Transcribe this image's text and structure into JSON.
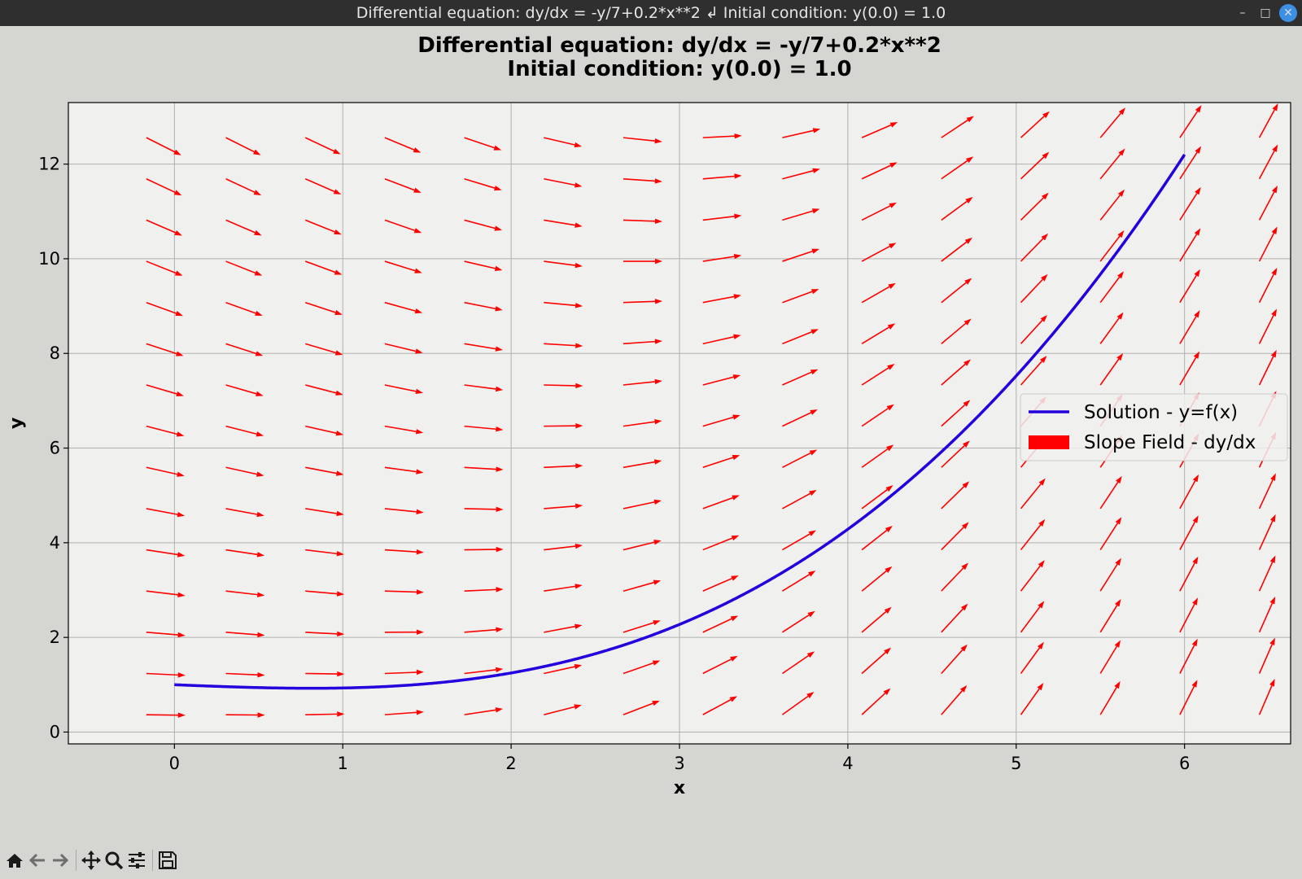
{
  "window": {
    "title": "Differential equation: dy/dx = -y/7+0.2*x**2 ↲ Initial condition: y(0.0) = 1.0",
    "minimize_glyph": "–",
    "maximize_glyph": "□",
    "close_glyph": "✕"
  },
  "toolbar": {
    "icons": [
      "home-icon",
      "back-arrow-icon",
      "forward-arrow-icon",
      "pan-icon",
      "zoom-icon",
      "configure-subplots-icon",
      "save-icon"
    ]
  },
  "chart_data": {
    "type": "line",
    "title_lines": [
      "Differential equation: dy/dx = -y/7+0.2*x**2",
      "Initial condition: y(0.0) = 1.0"
    ],
    "xlabel": "x",
    "ylabel": "y",
    "xlim": [
      -0.63,
      6.63
    ],
    "ylim": [
      -0.25,
      13.3
    ],
    "xticks": [
      0,
      1,
      2,
      3,
      4,
      5,
      6
    ],
    "yticks": [
      0,
      2,
      4,
      6,
      8,
      10,
      12
    ],
    "grid": true,
    "legend_placement": "center-right",
    "legend": [
      {
        "label": "Solution - y=f(x)",
        "color": "#2200dd",
        "kind": "line"
      },
      {
        "label": "Slope Field - dy/dx",
        "color": "#ff0000",
        "kind": "patch"
      }
    ],
    "equation": "dy/dx = -y/7+0.2*x**2",
    "initial_condition": {
      "x0": 0.0,
      "y0": 1.0
    },
    "solution_x_range": [
      0,
      6
    ],
    "solution_points": [
      [
        0,
        1.0
      ],
      [
        0.5,
        0.94
      ],
      [
        1,
        0.94
      ],
      [
        1.5,
        1.05
      ],
      [
        2,
        1.27
      ],
      [
        2.5,
        1.66
      ],
      [
        3,
        2.27
      ],
      [
        3.5,
        3.11
      ],
      [
        4,
        4.23
      ],
      [
        4.5,
        5.64
      ],
      [
        5,
        7.5
      ],
      [
        5.5,
        9.8
      ],
      [
        6,
        12.2
      ]
    ],
    "slope_field": {
      "x_values": [
        -0.1666667,
        0.3055556,
        0.7777778,
        1.25,
        1.7222222,
        2.1944444,
        2.6666667,
        3.1388889,
        3.6111111,
        4.0833333,
        4.5555556,
        5.0277778,
        5.5,
        5.9722222,
        6.4444444
      ],
      "y_values": [
        0.3666667,
        1.2375,
        2.1083333,
        2.9791667,
        3.85,
        4.7208333,
        5.5916667,
        6.4625,
        7.3333333,
        8.2041667,
        9.075,
        9.9458333,
        10.8166667,
        11.6875,
        12.5583333
      ]
    },
    "series_colors": {
      "solution": "#2200dd",
      "slope_field": "#ff0000"
    }
  }
}
